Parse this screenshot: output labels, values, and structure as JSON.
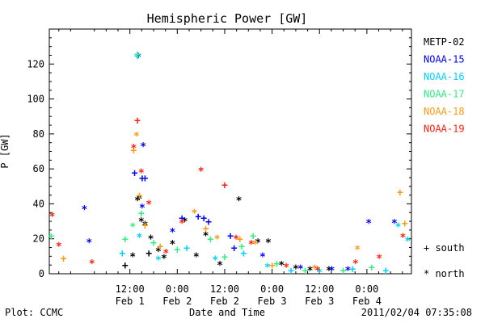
{
  "chart_data": {
    "type": "scatter",
    "title": "Hemispheric Power [GW]",
    "ylabel": "P [GW]",
    "xlabel": "Date and Time",
    "ylim": [
      0,
      140
    ],
    "xlim": [
      -0.35,
      3.47
    ],
    "yticks": [
      0,
      20,
      40,
      60,
      80,
      100,
      120
    ],
    "xticks": [
      {
        "x": 0.5,
        "time": "12:00",
        "date": "Feb 1"
      },
      {
        "x": 1.0,
        "time": "0:00",
        "date": "Feb 2"
      },
      {
        "x": 1.5,
        "time": "12:00",
        "date": "Feb 2"
      },
      {
        "x": 2.0,
        "time": "0:00",
        "date": "Feb 3"
      },
      {
        "x": 2.5,
        "time": "12:00",
        "date": "Feb 3"
      },
      {
        "x": 3.0,
        "time": "0:00",
        "date": "Feb 4"
      }
    ],
    "x_units": "days since 2011-02-01 00:00 UT",
    "grid": false,
    "legend_position": "right",
    "marker_legend": {
      "plus": "+ south",
      "star": "* north"
    },
    "series": [
      {
        "name": "METP-02",
        "color": "#000000",
        "points": [
          {
            "x": 0.53,
            "y": 10,
            "m": "*"
          },
          {
            "x": 0.58,
            "y": 42,
            "m": "*"
          },
          {
            "x": 0.6,
            "y": 43,
            "m": "*"
          },
          {
            "x": 0.62,
            "y": 30,
            "m": "*"
          },
          {
            "x": 0.66,
            "y": 28,
            "m": "*"
          },
          {
            "x": 0.72,
            "y": 20,
            "m": "*"
          },
          {
            "x": 0.8,
            "y": 13,
            "m": "*"
          },
          {
            "x": 0.86,
            "y": 9,
            "m": "*"
          },
          {
            "x": 0.95,
            "y": 17,
            "m": "*"
          },
          {
            "x": 1.08,
            "y": 30,
            "m": "*"
          },
          {
            "x": 1.3,
            "y": 22,
            "m": "*"
          },
          {
            "x": 1.65,
            "y": 42,
            "m": "*"
          },
          {
            "x": 1.85,
            "y": 18,
            "m": "*"
          },
          {
            "x": 1.96,
            "y": 18,
            "m": "*"
          },
          {
            "x": 2.6,
            "y": 2,
            "m": "*"
          },
          {
            "x": 0.45,
            "y": 5,
            "m": "+"
          },
          {
            "x": 0.7,
            "y": 12,
            "m": "+"
          },
          {
            "x": 1.2,
            "y": 10,
            "m": "*"
          },
          {
            "x": 1.45,
            "y": 5,
            "m": "*"
          },
          {
            "x": 2.1,
            "y": 5,
            "m": "*"
          },
          {
            "x": 2.25,
            "y": 3,
            "m": "*"
          },
          {
            "x": 2.4,
            "y": 2,
            "m": "*"
          }
        ]
      },
      {
        "name": "NOAA-15",
        "color": "#0000ff",
        "points": [
          {
            "x": 0.02,
            "y": 37,
            "m": "*"
          },
          {
            "x": 0.07,
            "y": 18,
            "m": "*"
          },
          {
            "x": 0.55,
            "y": 58,
            "m": "+"
          },
          {
            "x": 0.63,
            "y": 55,
            "m": "+"
          },
          {
            "x": 0.66,
            "y": 55,
            "m": "+"
          },
          {
            "x": 0.59,
            "y": 124,
            "m": "*"
          },
          {
            "x": 0.64,
            "y": 73,
            "m": "*"
          },
          {
            "x": 0.63,
            "y": 38,
            "m": "*"
          },
          {
            "x": 0.95,
            "y": 24,
            "m": "*"
          },
          {
            "x": 1.05,
            "y": 32,
            "m": "+"
          },
          {
            "x": 1.22,
            "y": 33,
            "m": "+"
          },
          {
            "x": 1.28,
            "y": 32,
            "m": "+"
          },
          {
            "x": 1.33,
            "y": 30,
            "m": "+"
          },
          {
            "x": 1.56,
            "y": 22,
            "m": "+"
          },
          {
            "x": 2.63,
            "y": 2,
            "m": "*"
          },
          {
            "x": 3.02,
            "y": 29,
            "m": "*"
          },
          {
            "x": 3.29,
            "y": 29,
            "m": "*"
          },
          {
            "x": 1.6,
            "y": 15,
            "m": "+"
          },
          {
            "x": 1.9,
            "y": 10,
            "m": "*"
          },
          {
            "x": 2.3,
            "y": 3,
            "m": "*"
          },
          {
            "x": 2.8,
            "y": 2,
            "m": "*"
          }
        ]
      },
      {
        "name": "NOAA-16",
        "color": "#00d0ff",
        "points": [
          {
            "x": 0.58,
            "y": 125,
            "m": "+"
          },
          {
            "x": 0.6,
            "y": 21,
            "m": "*"
          },
          {
            "x": 0.42,
            "y": 12,
            "m": "+"
          },
          {
            "x": 0.8,
            "y": 8,
            "m": "*"
          },
          {
            "x": 1.1,
            "y": 15,
            "m": "+"
          },
          {
            "x": 1.4,
            "y": 8,
            "m": "*"
          },
          {
            "x": 1.7,
            "y": 12,
            "m": "+"
          },
          {
            "x": 1.95,
            "y": 4,
            "m": "*"
          },
          {
            "x": 2.2,
            "y": 2,
            "m": "+"
          },
          {
            "x": 2.5,
            "y": 1,
            "m": "*"
          },
          {
            "x": 2.85,
            "y": 3,
            "m": "+"
          },
          {
            "x": 3.43,
            "y": 19,
            "m": "*"
          },
          {
            "x": 3.33,
            "y": 27,
            "m": "*"
          },
          {
            "x": 3.2,
            "y": 2,
            "m": "+"
          }
        ]
      },
      {
        "name": "NOAA-17",
        "color": "#30ee80",
        "points": [
          {
            "x": -0.33,
            "y": 22,
            "m": "+"
          },
          {
            "x": 0.45,
            "y": 20,
            "m": "+"
          },
          {
            "x": 0.53,
            "y": 27,
            "m": "*"
          },
          {
            "x": 0.58,
            "y": 126,
            "m": "+"
          },
          {
            "x": 0.62,
            "y": 35,
            "m": "+"
          },
          {
            "x": 0.75,
            "y": 18,
            "m": "+"
          },
          {
            "x": 1.0,
            "y": 14,
            "m": "+"
          },
          {
            "x": 1.35,
            "y": 20,
            "m": "+"
          },
          {
            "x": 1.68,
            "y": 16,
            "m": "+"
          },
          {
            "x": 1.8,
            "y": 22,
            "m": "+"
          },
          {
            "x": 2.05,
            "y": 6,
            "m": "+"
          },
          {
            "x": 2.35,
            "y": 2,
            "m": "+"
          },
          {
            "x": 2.75,
            "y": 2,
            "m": "+"
          },
          {
            "x": 3.05,
            "y": 4,
            "m": "+"
          },
          {
            "x": 1.5,
            "y": 10,
            "m": "+"
          }
        ]
      },
      {
        "name": "NOAA-18",
        "color": "#ff9a10",
        "points": [
          {
            "x": 0.54,
            "y": 71,
            "m": "+"
          },
          {
            "x": 0.57,
            "y": 79,
            "m": "*"
          },
          {
            "x": 0.6,
            "y": 45,
            "m": "+"
          },
          {
            "x": 0.66,
            "y": 28,
            "m": "+"
          },
          {
            "x": 0.82,
            "y": 16,
            "m": "+"
          },
          {
            "x": 1.18,
            "y": 35,
            "m": "*"
          },
          {
            "x": 1.3,
            "y": 26,
            "m": "+"
          },
          {
            "x": 1.42,
            "y": 20,
            "m": "*"
          },
          {
            "x": 1.66,
            "y": 20,
            "m": "+"
          },
          {
            "x": 1.82,
            "y": 17,
            "m": "*"
          },
          {
            "x": 2.0,
            "y": 5,
            "m": "+"
          },
          {
            "x": 2.9,
            "y": 14,
            "m": "*"
          },
          {
            "x": 3.35,
            "y": 47,
            "m": "+"
          },
          {
            "x": 3.4,
            "y": 29,
            "m": "+"
          },
          {
            "x": -0.2,
            "y": 9,
            "m": "+"
          },
          {
            "x": 2.45,
            "y": 3,
            "m": "*"
          }
        ]
      },
      {
        "name": "NOAA-19",
        "color": "#ff2010",
        "points": [
          {
            "x": -0.32,
            "y": 33,
            "m": "*"
          },
          {
            "x": -0.25,
            "y": 16,
            "m": "*"
          },
          {
            "x": 0.54,
            "y": 72,
            "m": "*"
          },
          {
            "x": 0.58,
            "y": 88,
            "m": "+"
          },
          {
            "x": 0.62,
            "y": 58,
            "m": "*"
          },
          {
            "x": 0.7,
            "y": 40,
            "m": "*"
          },
          {
            "x": 1.05,
            "y": 29,
            "m": "*"
          },
          {
            "x": 1.25,
            "y": 59,
            "m": "*"
          },
          {
            "x": 1.5,
            "y": 51,
            "m": "+"
          },
          {
            "x": 1.62,
            "y": 20,
            "m": "*"
          },
          {
            "x": 1.78,
            "y": 17,
            "m": "*"
          },
          {
            "x": 2.48,
            "y": 2,
            "m": "*"
          },
          {
            "x": 2.88,
            "y": 6,
            "m": "*"
          },
          {
            "x": 3.13,
            "y": 9,
            "m": "*"
          },
          {
            "x": 3.38,
            "y": 21,
            "m": "*"
          },
          {
            "x": 0.1,
            "y": 6,
            "m": "*"
          },
          {
            "x": 0.88,
            "y": 12,
            "m": "*"
          },
          {
            "x": 2.15,
            "y": 4,
            "m": "*"
          }
        ]
      }
    ]
  },
  "footer": {
    "left": "Plot: CCMC",
    "right": "2011/02/04 07:35:08"
  }
}
